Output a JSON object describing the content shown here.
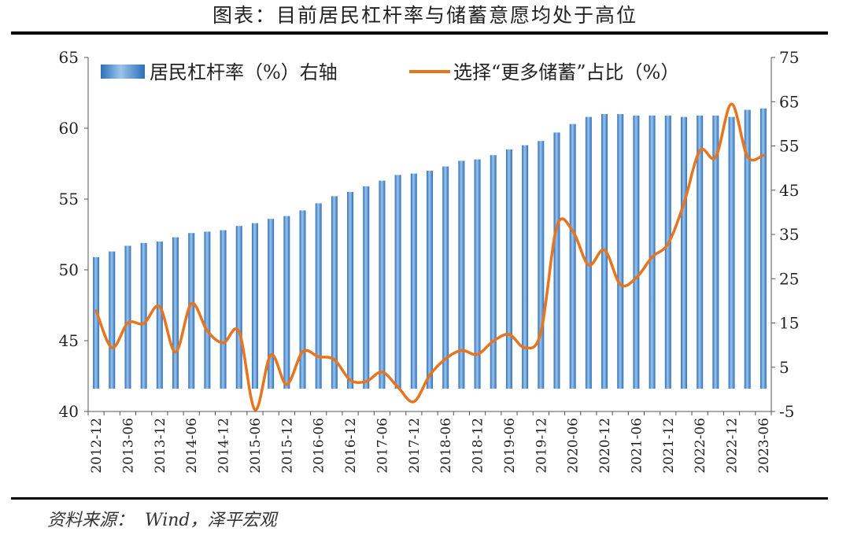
{
  "title": "图表：目前居民杠杆率与储蓄意愿均处于高位",
  "source": "资料来源：  Wind，泽平宏观",
  "chart_data": {
    "type": "bar+line",
    "categories": [
      "2012-12",
      "2013-03",
      "2013-06",
      "2013-09",
      "2013-12",
      "2014-03",
      "2014-06",
      "2014-09",
      "2014-12",
      "2015-03",
      "2015-06",
      "2015-09",
      "2015-12",
      "2016-03",
      "2016-06",
      "2016-09",
      "2016-12",
      "2017-03",
      "2017-06",
      "2017-09",
      "2017-12",
      "2018-03",
      "2018-06",
      "2018-09",
      "2018-12",
      "2019-03",
      "2019-06",
      "2019-09",
      "2019-12",
      "2020-03",
      "2020-06",
      "2020-09",
      "2020-12",
      "2021-03",
      "2021-06",
      "2021-09",
      "2021-12",
      "2022-03",
      "2022-06",
      "2022-09",
      "2022-12",
      "2023-03",
      "2023-06"
    ],
    "x_tick_labels": [
      "2012-12",
      "2013-06",
      "2013-12",
      "2014-06",
      "2014-12",
      "2015-06",
      "2015-12",
      "2016-06",
      "2016-12",
      "2017-06",
      "2017-12",
      "2018-06",
      "2018-12",
      "2019-06",
      "2019-12",
      "2020-06",
      "2020-12",
      "2021-06",
      "2021-12",
      "2022-06",
      "2022-12",
      "2023-06"
    ],
    "series": [
      {
        "name": "居民杠杆率（%）右轴",
        "type": "bar",
        "axis": "left",
        "color": "#4a86c8",
        "values": [
          50.9,
          51.3,
          51.7,
          51.9,
          52.0,
          52.3,
          52.6,
          52.7,
          52.8,
          53.1,
          53.3,
          53.6,
          53.8,
          54.2,
          54.7,
          55.2,
          55.5,
          55.9,
          56.3,
          56.7,
          56.8,
          57.0,
          57.3,
          57.7,
          57.8,
          58.1,
          58.5,
          58.8,
          59.1,
          59.7,
          60.3,
          60.8,
          61.0,
          61.0,
          60.9,
          60.9,
          60.9,
          60.8,
          60.9,
          60.9,
          60.8,
          61.3,
          61.4
        ]
      },
      {
        "name": "选择“更多储蓄”占比（%）",
        "type": "line",
        "axis": "right",
        "color": "#e8741e",
        "values": [
          17.8,
          9.4,
          15.0,
          14.9,
          18.7,
          8.4,
          19.4,
          13.2,
          10.5,
          13.0,
          -4.6,
          7.8,
          1.1,
          8.5,
          7.4,
          6.7,
          2.1,
          1.8,
          3.9,
          0.5,
          -2.8,
          3.2,
          6.9,
          8.8,
          7.9,
          10.9,
          12.4,
          9.4,
          12.9,
          36.8,
          35.8,
          28.1,
          31.5,
          23.7,
          25.2,
          29.9,
          32.9,
          42.0,
          53.9,
          52.5,
          64.5,
          52.6,
          52.9
        ]
      }
    ],
    "y_left": {
      "min": 40,
      "max": 65,
      "ticks": [
        40,
        45,
        50,
        55,
        60,
        65
      ]
    },
    "y_right": {
      "min": -5,
      "max": 75,
      "ticks": [
        -5,
        5,
        15,
        25,
        35,
        45,
        55,
        65,
        75
      ]
    },
    "legend": {
      "placement": "top"
    },
    "grid": false
  }
}
